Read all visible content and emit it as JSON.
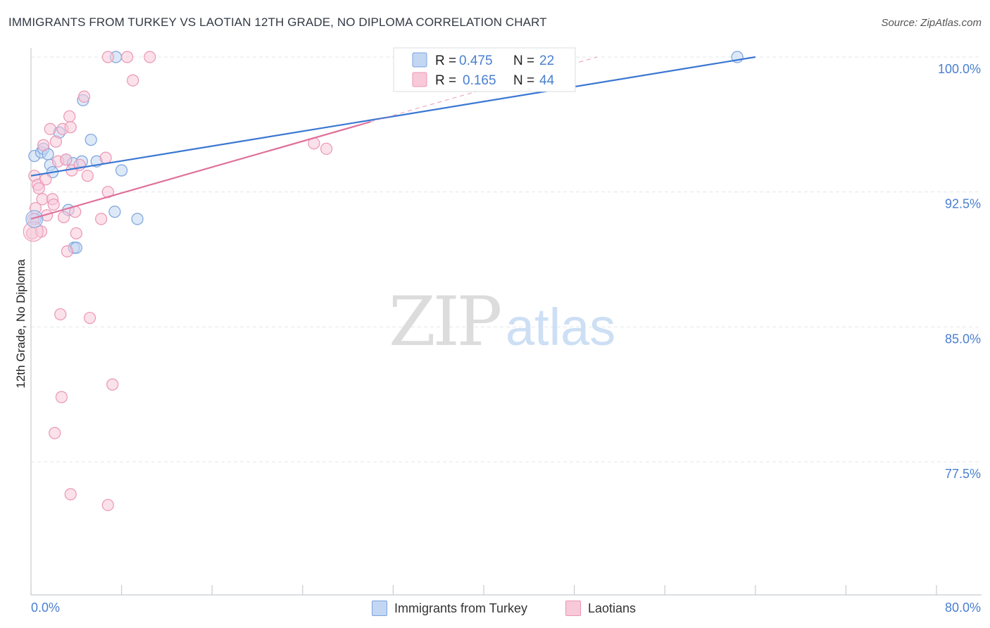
{
  "title": "IMMIGRANTS FROM TURKEY VS LAOTIAN 12TH GRADE, NO DIPLOMA CORRELATION CHART",
  "source": "Source: ZipAtlas.com",
  "watermark": {
    "zip": "ZIP",
    "atlas": "atlas"
  },
  "legend_top": {
    "rows": [
      {
        "r_label": "R =",
        "r_value": "0.475",
        "n_label": "N =",
        "n_value": "22"
      },
      {
        "r_label": "R =",
        "r_value": "0.165",
        "n_label": "N =",
        "n_value": "44"
      }
    ]
  },
  "legend_bottom": [
    "Immigrants from Turkey",
    "Laotians"
  ],
  "colors": {
    "blue": "#3a77d2",
    "blue_fill": "#c3d7f3",
    "blue_stroke": "#7aa3dd",
    "pink": "#e0709a",
    "pink_fill": "#f8c9d8",
    "pink_stroke": "#eb96b4",
    "tick_text": "#4a7fd0",
    "grid": "#e3e6ea"
  },
  "chart_data": {
    "type": "scatter",
    "title": "IMMIGRANTS FROM TURKEY VS LAOTIAN 12TH GRADE, NO DIPLOMA CORRELATION CHART",
    "xlabel": "",
    "ylabel": "12th Grade, No Diploma",
    "xlim": [
      0,
      80
    ],
    "ylim": [
      70.5,
      101.5
    ],
    "x_tick_labels": [
      "0.0%",
      "80.0%"
    ],
    "y_ticks": [
      77.5,
      85.0,
      92.5,
      100.0
    ],
    "y_tick_labels": [
      "77.5%",
      "85.0%",
      "92.5%",
      "100.0%"
    ],
    "series": [
      {
        "name": "Immigrants from Turkey",
        "color": "#3a77d2",
        "r": 0.475,
        "n": 22,
        "trend": {
          "x0": 0.0,
          "y0": 93.4,
          "x1": 64.0,
          "y1": 100.0,
          "dashed_extension": false
        },
        "points": [
          [
            0.3,
            94.5
          ],
          [
            0.4,
            91.0
          ],
          [
            0.9,
            94.7
          ],
          [
            1.1,
            94.9
          ],
          [
            1.5,
            94.6
          ],
          [
            1.7,
            94.0
          ],
          [
            1.9,
            93.6
          ],
          [
            2.5,
            95.8
          ],
          [
            3.1,
            94.3
          ],
          [
            3.3,
            91.5
          ],
          [
            3.7,
            94.1
          ],
          [
            3.8,
            89.4
          ],
          [
            4.0,
            89.4
          ],
          [
            4.5,
            94.2
          ],
          [
            4.6,
            97.6
          ],
          [
            5.3,
            95.4
          ],
          [
            5.8,
            94.2
          ],
          [
            7.5,
            100.0
          ],
          [
            8.0,
            93.7
          ],
          [
            7.4,
            91.4
          ],
          [
            9.4,
            91.0
          ],
          [
            62.4,
            100.0
          ]
        ]
      },
      {
        "name": "Laotians",
        "color": "#e0709a",
        "r": 0.165,
        "n": 44,
        "trend": {
          "x0": 0.0,
          "y0": 91.0,
          "x1": 30.0,
          "y1": 96.4,
          "dashed_extension": true,
          "dash_x1": 50.0,
          "dash_y1": 100.0
        },
        "points": [
          [
            0.1,
            90.2
          ],
          [
            0.2,
            91.0
          ],
          [
            0.3,
            93.4
          ],
          [
            0.4,
            91.6
          ],
          [
            0.6,
            92.9
          ],
          [
            0.7,
            92.7
          ],
          [
            0.9,
            90.3
          ],
          [
            1.0,
            92.1
          ],
          [
            1.1,
            95.1
          ],
          [
            1.3,
            93.2
          ],
          [
            1.4,
            91.2
          ],
          [
            1.7,
            96.0
          ],
          [
            1.9,
            92.1
          ],
          [
            2.0,
            91.8
          ],
          [
            2.2,
            95.3
          ],
          [
            2.4,
            94.2
          ],
          [
            2.6,
            85.7
          ],
          [
            2.7,
            81.1
          ],
          [
            2.8,
            96.0
          ],
          [
            2.9,
            91.1
          ],
          [
            3.1,
            94.3
          ],
          [
            3.2,
            89.2
          ],
          [
            3.4,
            96.7
          ],
          [
            3.5,
            96.1
          ],
          [
            3.6,
            93.7
          ],
          [
            3.9,
            91.4
          ],
          [
            4.0,
            90.2
          ],
          [
            4.3,
            94.0
          ],
          [
            4.7,
            97.8
          ],
          [
            5.0,
            93.4
          ],
          [
            5.2,
            85.5
          ],
          [
            6.2,
            91.0
          ],
          [
            6.6,
            94.4
          ],
          [
            6.8,
            92.5
          ],
          [
            7.2,
            81.8
          ],
          [
            2.1,
            79.1
          ],
          [
            3.5,
            75.7
          ],
          [
            6.8,
            75.1
          ],
          [
            6.8,
            100.0
          ],
          [
            8.5,
            100.0
          ],
          [
            9.0,
            98.7
          ],
          [
            10.5,
            100.0
          ],
          [
            25.0,
            95.2
          ],
          [
            26.1,
            94.9
          ]
        ]
      }
    ]
  }
}
